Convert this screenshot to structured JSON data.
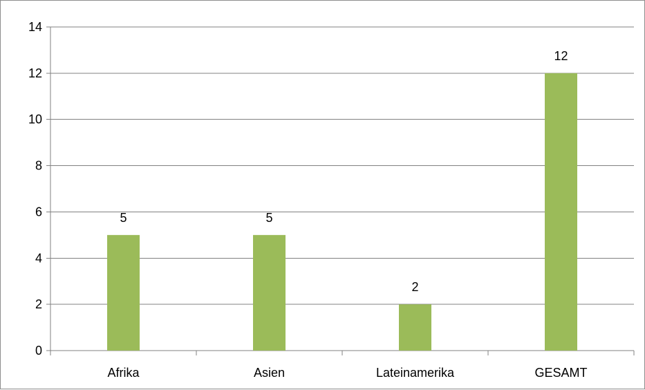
{
  "chart_data": {
    "type": "bar",
    "title": "",
    "xlabel": "",
    "ylabel": "",
    "categories": [
      "Afrika",
      "Asien",
      "Lateinamerika",
      "GESAMT"
    ],
    "values": [
      5,
      5,
      2,
      12
    ],
    "data_labels": [
      "5",
      "5",
      "2",
      "12"
    ],
    "ylim": [
      0,
      14
    ],
    "yticks": [
      0,
      2,
      4,
      6,
      8,
      10,
      12,
      14
    ],
    "ytick_labels": [
      "0",
      "2",
      "4",
      "6",
      "8",
      "10",
      "12",
      "14"
    ],
    "grid": true,
    "legend": "none",
    "colors": {
      "bar": "#9bbb59",
      "grid": "#808080",
      "axis": "#808080",
      "border": "#8c8c8c"
    }
  }
}
